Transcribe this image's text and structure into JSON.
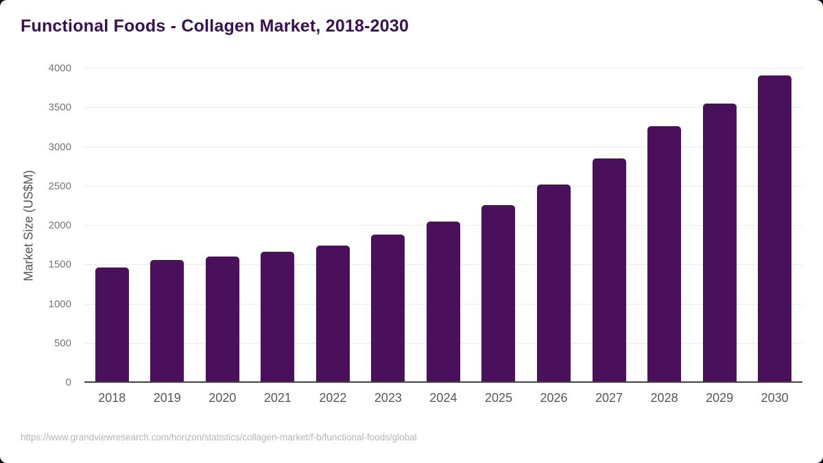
{
  "title": "Functional Foods - Collagen Market, 2018-2030",
  "source_url": "https://www.grandviewresearch.com/horizon/statistics/collagen-market/f-b/functional-foods/global",
  "colors": {
    "bar": "#4a105c",
    "title_text": "#3b1053",
    "gridline": "#ebebeb",
    "axis_baseline": "#3f3f3f",
    "y_tick_text": "#757575",
    "x_tick_text": "#565656",
    "axis_title_text": "#555555",
    "source_text": "#b5b5b5",
    "card_background": "#ffffff"
  },
  "chart_data": {
    "type": "bar",
    "title": "Functional Foods - Collagen Market, 2018-2030",
    "categories": [
      "2018",
      "2019",
      "2020",
      "2021",
      "2022",
      "2023",
      "2024",
      "2025",
      "2026",
      "2027",
      "2028",
      "2029",
      "2030"
    ],
    "values": [
      1465,
      1560,
      1605,
      1665,
      1750,
      1885,
      2050,
      2260,
      2525,
      2855,
      3265,
      3555,
      3910
    ],
    "xlabel": "",
    "ylabel": "Market Size (US$M)",
    "ylim": [
      0,
      4000
    ],
    "ytick_step": 500,
    "ytick_labels": [
      "0",
      "500",
      "1000",
      "1500",
      "2000",
      "2500",
      "3000",
      "3500",
      "4000"
    ],
    "grid": true,
    "legend": false,
    "bar_color": "#4a105c"
  }
}
